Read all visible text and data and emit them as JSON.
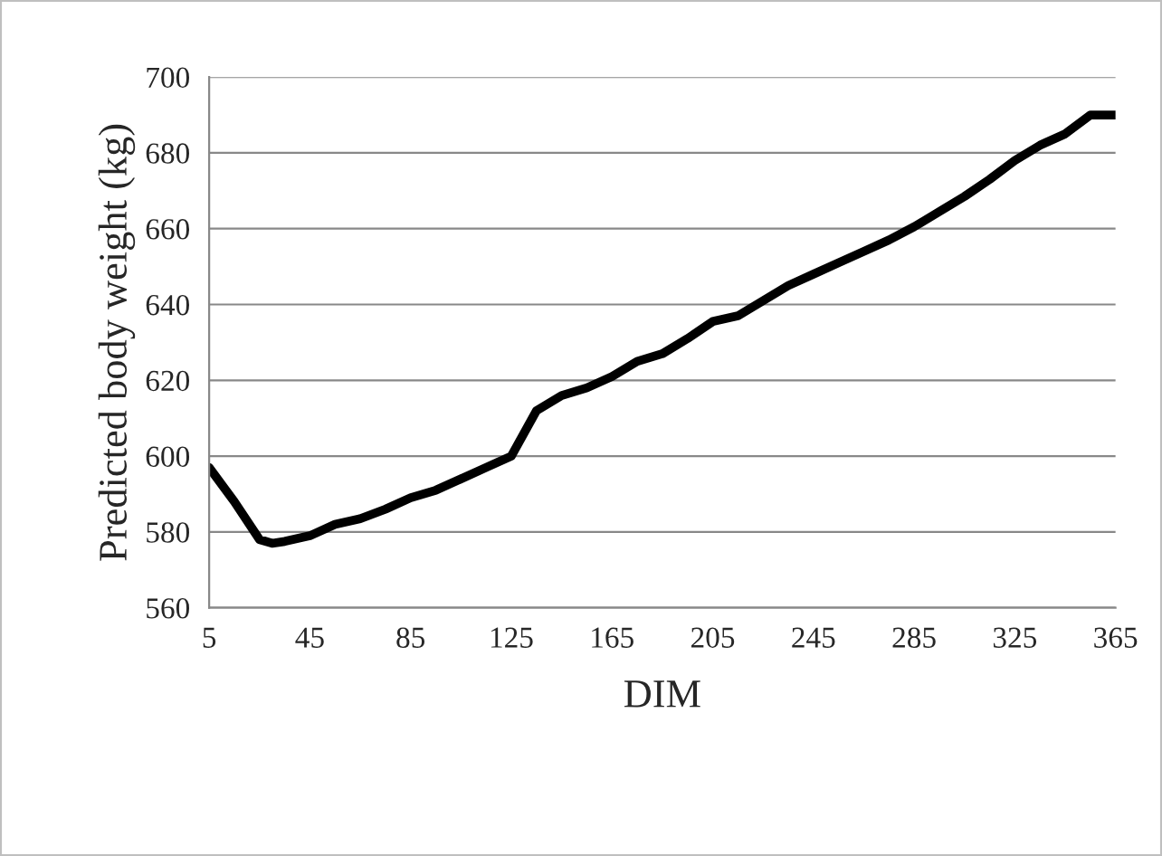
{
  "chart_data": {
    "type": "line",
    "xlabel": "DIM",
    "ylabel": "Predicted body weight (kg)",
    "x": [
      5,
      15,
      25,
      30,
      35,
      45,
      55,
      65,
      75,
      85,
      95,
      105,
      115,
      125,
      135,
      145,
      155,
      165,
      175,
      185,
      195,
      205,
      215,
      225,
      235,
      245,
      255,
      265,
      275,
      285,
      295,
      305,
      315,
      325,
      335,
      345,
      355,
      365
    ],
    "series": [
      {
        "color": "#000000",
        "values": [
          597,
          588,
          578,
          577,
          577.5,
          579,
          582,
          583.5,
          586,
          589,
          591,
          594,
          597,
          600,
          612,
          616,
          618,
          621,
          625,
          627,
          631,
          635.5,
          637,
          641,
          645,
          648,
          651,
          654,
          657,
          660.5,
          664.5,
          668.5,
          673,
          678,
          682,
          685,
          690,
          690
        ]
      }
    ],
    "xlim": [
      5,
      365
    ],
    "xticks": [
      5,
      45,
      85,
      125,
      165,
      205,
      245,
      285,
      325,
      365
    ],
    "ylim": [
      560,
      700
    ],
    "yticks": [
      560,
      580,
      600,
      620,
      640,
      660,
      680,
      700
    ],
    "grid": "y",
    "legend": false,
    "marker": "none",
    "line_style": "solid"
  }
}
